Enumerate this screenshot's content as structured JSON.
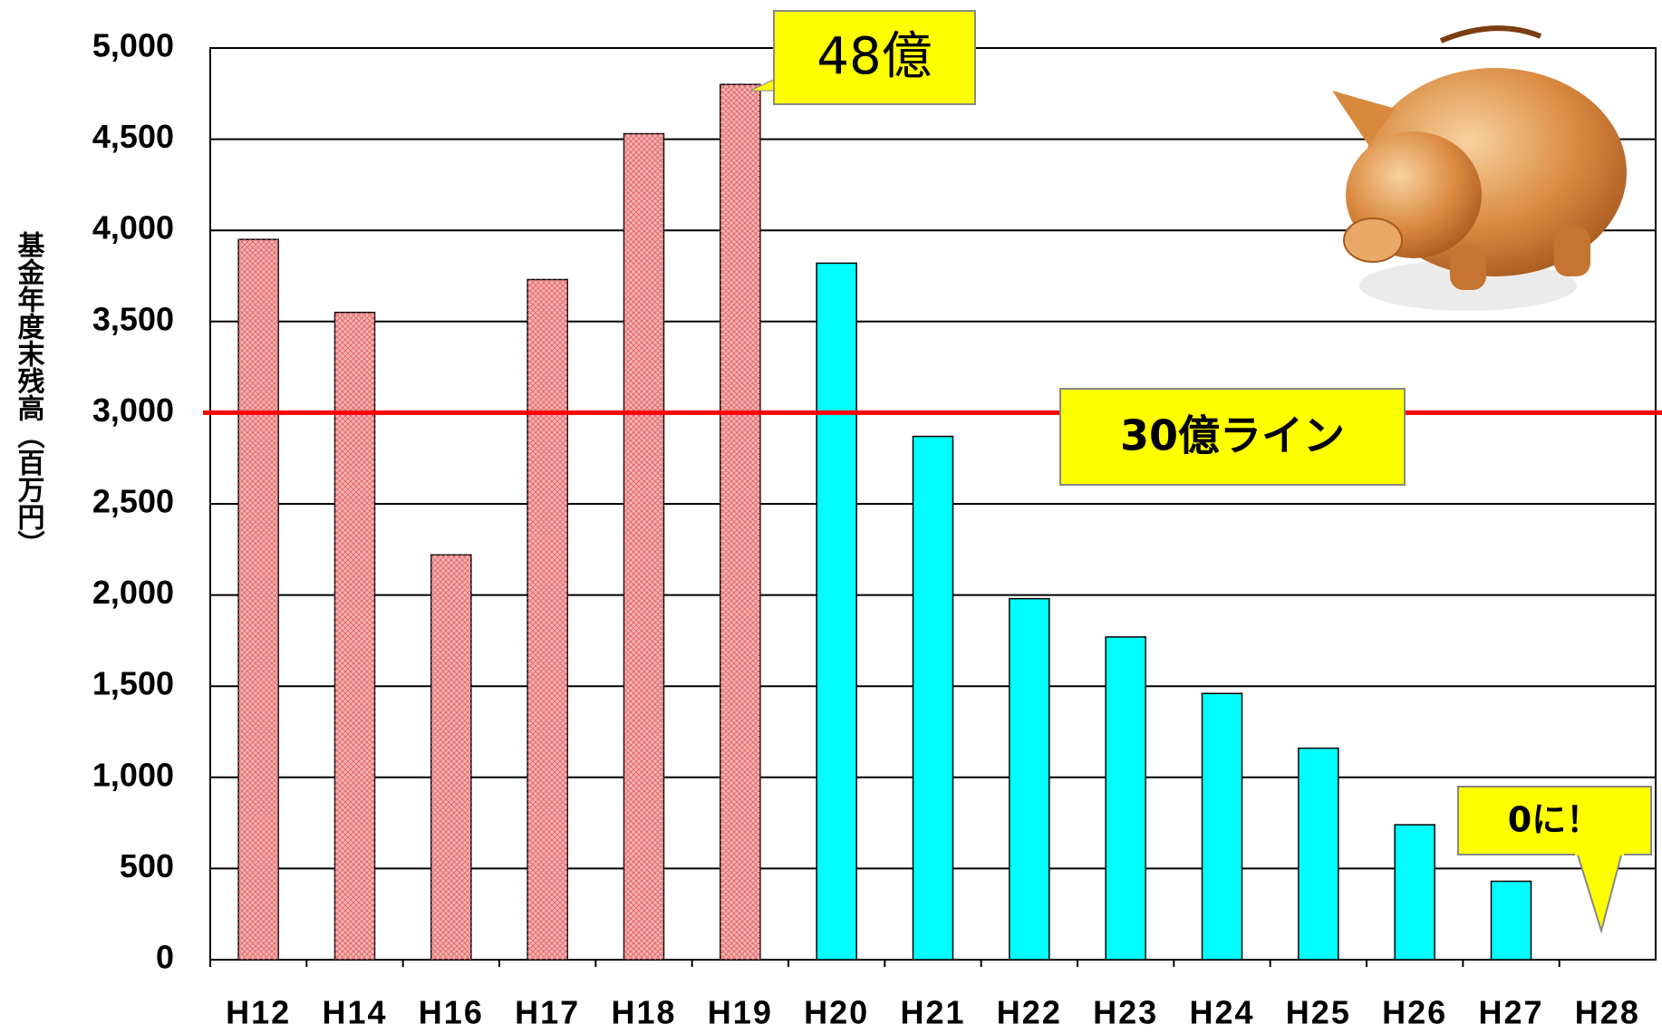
{
  "chart_data": {
    "type": "bar",
    "y_label": "基金年度末残高（百万円）",
    "categories": [
      "H12",
      "H14",
      "H16",
      "H17",
      "H18",
      "H19",
      "H20",
      "H21",
      "H22",
      "H23",
      "H24",
      "H25",
      "H26",
      "H27",
      "H28"
    ],
    "values": [
      3950,
      3550,
      2220,
      3730,
      4530,
      4800,
      3820,
      2870,
      1980,
      1770,
      1460,
      1160,
      740,
      430,
      0
    ],
    "colors": [
      "#f6b3b3",
      "#f6b3b3",
      "#f6b3b3",
      "#f6b3b3",
      "#f6b3b3",
      "#f6b3b3",
      "#00ffff",
      "#00ffff",
      "#00ffff",
      "#00ffff",
      "#00ffff",
      "#00ffff",
      "#00ffff",
      "#00ffff",
      "#00ffff"
    ],
    "ylim": [
      0,
      5000
    ],
    "yticks": [
      0,
      500,
      {
        "value": 1000,
        "label": "1,000"
      },
      {
        "value": 1500,
        "label": "1,500"
      },
      {
        "value": 2000,
        "label": "2,000"
      },
      {
        "value": 2500,
        "label": "2,500"
      },
      {
        "value": 3000,
        "label": "3,000"
      },
      {
        "value": 3500,
        "label": "3,500"
      },
      {
        "value": 4000,
        "label": "4,000"
      },
      {
        "value": 4500,
        "label": "4,500"
      },
      {
        "value": 5000,
        "label": "5,000"
      }
    ],
    "grid": true,
    "reference_line": {
      "value": 3000,
      "color": "#ff0000",
      "label": "30億ライン"
    },
    "annotations": [
      "48億",
      "0に！"
    ]
  }
}
